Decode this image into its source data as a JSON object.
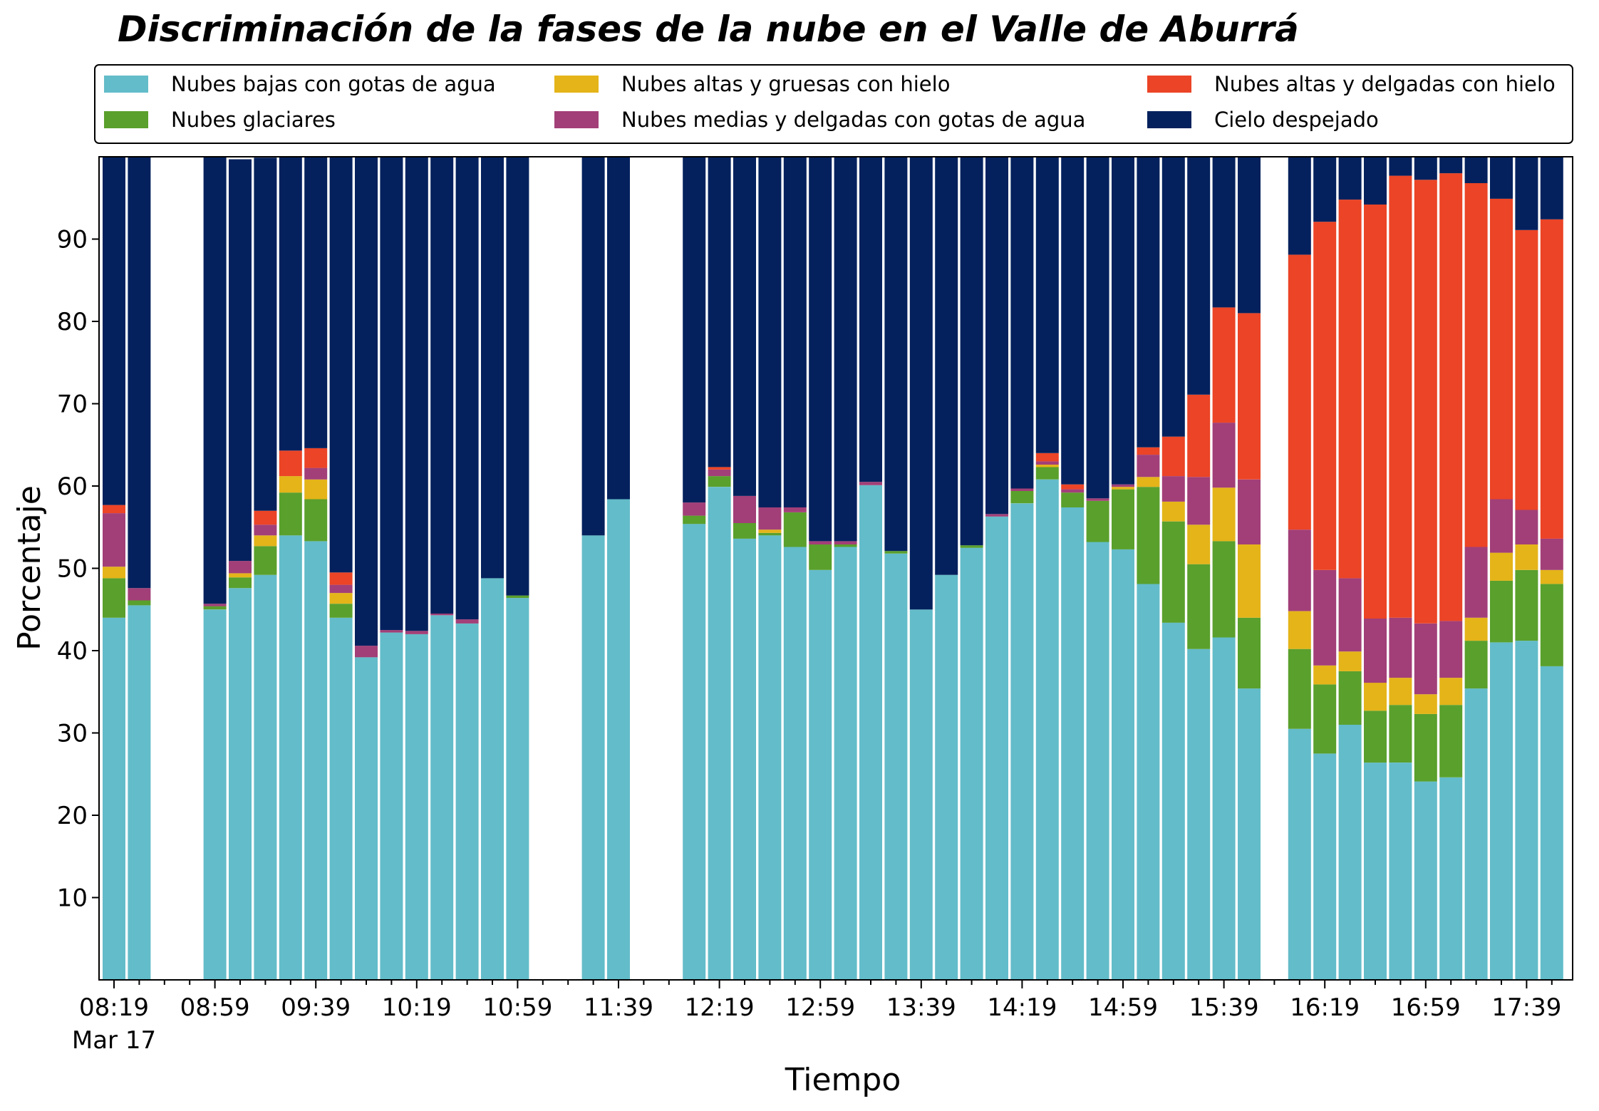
{
  "chart_data": {
    "type": "bar",
    "stacked": true,
    "title": "Discriminación de la fases de la nube en el Valle de Aburrá",
    "xlabel": "Tiempo",
    "ylabel": "Porcentaje",
    "ylim": [
      0,
      100
    ],
    "yticks": [
      10,
      20,
      30,
      40,
      50,
      60,
      70,
      80,
      90
    ],
    "x_tick_labels": [
      "08:19",
      "08:59",
      "09:39",
      "10:19",
      "10:59",
      "11:39",
      "12:19",
      "12:59",
      "13:39",
      "14:19",
      "14:59",
      "15:39",
      "16:19",
      "16:59",
      "17:39"
    ],
    "x_date_label": "Mar 17",
    "legend_position": "top",
    "x": [
      "08:19",
      "08:29",
      "08:39",
      "08:49",
      "08:59",
      "09:09",
      "09:19",
      "09:29",
      "09:39",
      "09:49",
      "09:59",
      "10:09",
      "10:19",
      "10:29",
      "10:39",
      "10:49",
      "10:59",
      "11:09",
      "11:19",
      "11:29",
      "11:39",
      "11:49",
      "11:59",
      "12:09",
      "12:19",
      "12:29",
      "12:39",
      "12:49",
      "12:59",
      "13:09",
      "13:19",
      "13:29",
      "13:39",
      "13:49",
      "13:59",
      "14:09",
      "14:19",
      "14:29",
      "14:39",
      "14:49",
      "14:59",
      "15:09",
      "15:19",
      "15:29",
      "15:39",
      "15:49",
      "15:59",
      "16:09",
      "16:19",
      "16:29",
      "16:39",
      "16:49",
      "16:59",
      "17:09",
      "17:19",
      "17:29",
      "17:39",
      "17:49"
    ],
    "series": [
      {
        "name": "Nubes bajas con gotas de agua",
        "color": "#63bcc9",
        "values": [
          44,
          45.5,
          null,
          null,
          45,
          47.6,
          49.2,
          54,
          53.3,
          44,
          39.2,
          42.2,
          42,
          44.3,
          43.3,
          48.8,
          46.4,
          null,
          null,
          54,
          58.4,
          null,
          null,
          55.4,
          59.9,
          53.6,
          54,
          52.6,
          49.8,
          52.6,
          60.1,
          51.8,
          45,
          49.2,
          52.5,
          56.3,
          57.9,
          60.8,
          57.4,
          53.2,
          52.3,
          48.1,
          43.4,
          40.2,
          41.6,
          35.4,
          null,
          30.5,
          27.5,
          31,
          26.4,
          26.4,
          24.1,
          24.6,
          35.4,
          41,
          41.2,
          38.1
        ]
      },
      {
        "name": "Nubes glaciares",
        "color": "#5aa02c",
        "values": [
          4.8,
          0.6,
          null,
          null,
          0.4,
          1.3,
          3.5,
          5.2,
          5.1,
          1.7,
          0,
          0,
          0,
          0,
          0,
          0,
          0.3,
          null,
          null,
          0,
          0,
          null,
          null,
          1,
          1.3,
          1.9,
          0.3,
          4.2,
          3.1,
          0.3,
          0,
          0.3,
          0,
          0,
          0.3,
          0,
          1.5,
          1.5,
          1.8,
          5,
          7.3,
          11.8,
          12.3,
          10.3,
          11.7,
          8.6,
          null,
          9.7,
          8.4,
          6.5,
          6.3,
          7,
          8.2,
          8.8,
          5.8,
          7.5,
          8.6,
          10
        ]
      },
      {
        "name": "Nubes altas y gruesas con hielo",
        "color": "#e4b419",
        "values": [
          1.4,
          0,
          null,
          null,
          0,
          0.5,
          1.3,
          2,
          2.4,
          1.3,
          0,
          0,
          0,
          0,
          0,
          0,
          0,
          null,
          null,
          0,
          0,
          null,
          null,
          0,
          0,
          0,
          0.4,
          0,
          0,
          0,
          0,
          0,
          0,
          0,
          0,
          0,
          0,
          0.3,
          0,
          0,
          0.3,
          1.2,
          2.4,
          4.8,
          6.5,
          8.9,
          null,
          4.6,
          2.3,
          2.4,
          3.4,
          3.3,
          2.4,
          3.3,
          2.8,
          3.4,
          3.1,
          1.7
        ]
      },
      {
        "name": "Nubes medias y delgadas con gotas de agua",
        "color": "#a23f78",
        "values": [
          6.5,
          1.5,
          null,
          null,
          0.3,
          1.5,
          1.3,
          0,
          1.4,
          1,
          1.4,
          0.3,
          0.4,
          0.2,
          0.5,
          0,
          0,
          null,
          null,
          0,
          0,
          null,
          null,
          1.6,
          0.8,
          3.3,
          2.7,
          0.6,
          0.4,
          0.4,
          0.4,
          0,
          0,
          0,
          0,
          0.3,
          0.3,
          0.4,
          0.4,
          0.3,
          0.3,
          2.7,
          3.1,
          5.8,
          7.9,
          7.9,
          null,
          9.9,
          11.6,
          8.9,
          7.8,
          7.3,
          8.6,
          6.9,
          8.6,
          6.5,
          4.2,
          3.8
        ]
      },
      {
        "name": "Nubes altas y delgadas con hielo",
        "color": "#eb4426",
        "values": [
          1,
          0,
          null,
          null,
          0,
          0,
          1.7,
          3.1,
          2.4,
          1.5,
          0,
          0,
          0,
          0,
          0,
          0,
          0,
          null,
          null,
          0,
          0,
          null,
          null,
          0,
          0.3,
          0,
          0,
          0,
          0,
          0,
          0,
          0,
          0,
          0,
          0,
          0,
          0,
          1,
          0.6,
          0,
          0,
          0.9,
          4.8,
          10,
          14,
          20.2,
          null,
          33.4,
          42.3,
          46,
          50.3,
          53.7,
          53.9,
          54.4,
          44.2,
          36.5,
          34,
          38.8
        ]
      },
      {
        "name": "Cielo despejado",
        "color": "#04215d",
        "values": [
          42.3,
          52.4,
          null,
          null,
          54.3,
          48.8,
          42.9,
          35.7,
          35.4,
          50.5,
          59.4,
          57.5,
          57.6,
          55.5,
          56.2,
          51.2,
          53.3,
          null,
          null,
          46,
          41.6,
          null,
          null,
          42,
          37.7,
          41.2,
          42.6,
          42.6,
          46.7,
          46.7,
          39.5,
          47.9,
          55,
          50.8,
          47.2,
          43.4,
          40.3,
          36,
          39.8,
          41.5,
          39.8,
          35.3,
          34,
          29,
          18.3,
          19,
          null,
          11.9,
          7.9,
          5.2,
          5.8,
          2.3,
          2.8,
          2,
          3.2,
          5.1,
          8.9,
          7.6
        ]
      }
    ]
  }
}
